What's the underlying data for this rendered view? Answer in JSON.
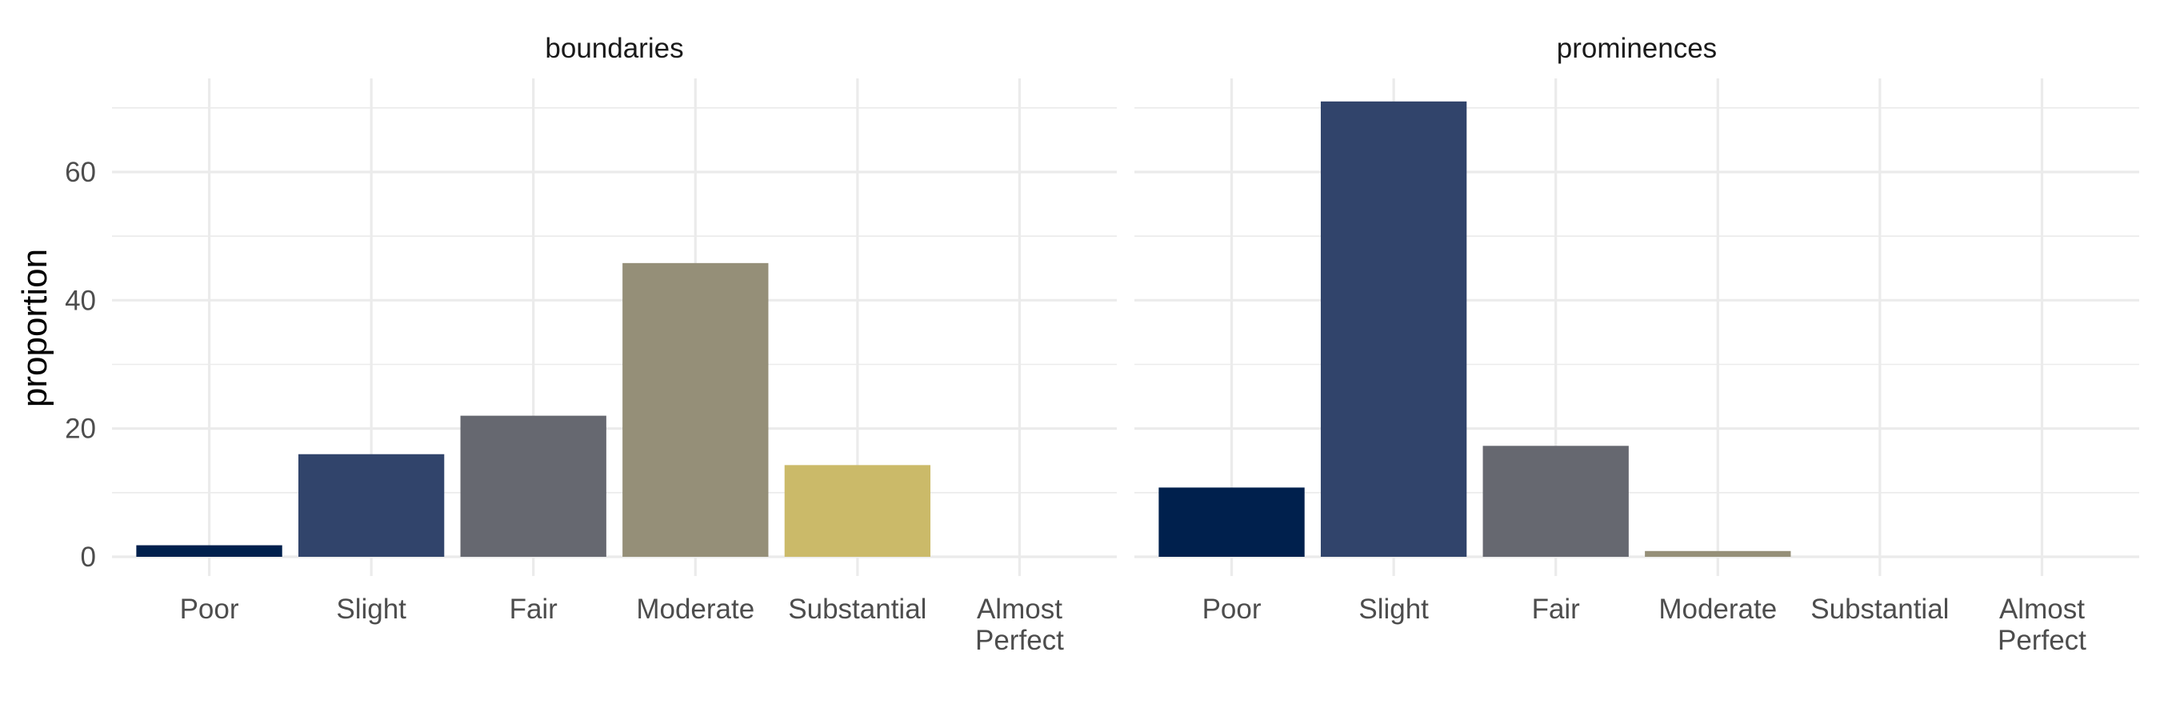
{
  "chart_data": {
    "type": "bar",
    "ylabel": "proportion",
    "xlabel": "",
    "ylim": [
      0,
      75
    ],
    "yticks": [
      0,
      20,
      40,
      60
    ],
    "grid": true,
    "legend": "none",
    "categories": [
      "Poor",
      "Slight",
      "Fair",
      "Moderate",
      "Substantial",
      "Almost Perfect"
    ],
    "category_lines": [
      [
        "Poor"
      ],
      [
        "Slight"
      ],
      [
        "Fair"
      ],
      [
        "Moderate"
      ],
      [
        "Substantial"
      ],
      [
        "Almost",
        "Perfect"
      ]
    ],
    "colors": [
      "#00204D",
      "#31446B",
      "#666870",
      "#958F78",
      "#CBBA69",
      "#FFEA46"
    ],
    "panels": [
      {
        "title": "boundaries",
        "values": [
          1.8,
          16.0,
          22.0,
          45.8,
          14.3,
          0
        ]
      },
      {
        "title": "prominences",
        "values": [
          10.8,
          71.0,
          17.3,
          0.9,
          0,
          0
        ]
      }
    ]
  }
}
